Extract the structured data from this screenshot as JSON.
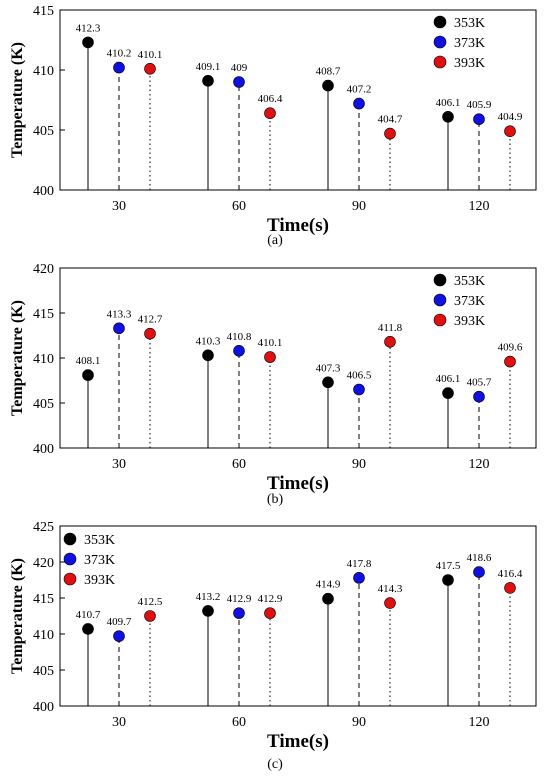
{
  "chart_data": [
    {
      "type": "scatter",
      "subtitle": "(a)",
      "xlabel": "Time(s)",
      "ylabel": "Temperature (K)",
      "categories": [
        "30",
        "60",
        "90",
        "120"
      ],
      "ylim": [
        400,
        415
      ],
      "yticks": [
        400,
        405,
        410,
        415
      ],
      "legend_position": "top-right",
      "series": [
        {
          "name": "353K",
          "color": "#000000",
          "line_style": "solid",
          "values": [
            412.3,
            409.1,
            408.7,
            406.1
          ],
          "labels": [
            "412.3",
            "409.1",
            "408.7",
            "406.1"
          ]
        },
        {
          "name": "373K",
          "color": "#1010e0",
          "line_style": "dashed",
          "values": [
            410.2,
            409.0,
            407.2,
            405.9
          ],
          "labels": [
            "410.2",
            "409",
            "407.2",
            "405.9"
          ]
        },
        {
          "name": "393K",
          "color": "#e01010",
          "line_style": "dotted",
          "values": [
            410.1,
            406.4,
            404.7,
            404.9
          ],
          "labels": [
            "410.1",
            "406.4",
            "404.7",
            "404.9"
          ]
        }
      ]
    },
    {
      "type": "scatter",
      "subtitle": "(b)",
      "xlabel": "Time(s)",
      "ylabel": "Temperature (K)",
      "categories": [
        "30",
        "60",
        "90",
        "120"
      ],
      "ylim": [
        400,
        420
      ],
      "yticks": [
        400,
        405,
        410,
        415,
        420
      ],
      "legend_position": "top-right",
      "series": [
        {
          "name": "353K",
          "color": "#000000",
          "line_style": "solid",
          "values": [
            408.1,
            410.3,
            407.3,
            406.1
          ],
          "labels": [
            "408.1",
            "410.3",
            "407.3",
            "406.1"
          ]
        },
        {
          "name": "373K",
          "color": "#1010e0",
          "line_style": "dashed",
          "values": [
            413.3,
            410.8,
            406.5,
            405.7
          ],
          "labels": [
            "413.3",
            "410.8",
            "406.5",
            "405.7"
          ]
        },
        {
          "name": "393K",
          "color": "#e01010",
          "line_style": "dotted",
          "values": [
            412.7,
            410.1,
            411.8,
            409.6
          ],
          "labels": [
            "412.7",
            "410.1",
            "411.8",
            "409.6"
          ]
        }
      ]
    },
    {
      "type": "scatter",
      "subtitle": "(c)",
      "xlabel": "Time(s)",
      "ylabel": "Temperature (K)",
      "categories": [
        "30",
        "60",
        "90",
        "120"
      ],
      "ylim": [
        400,
        425
      ],
      "yticks": [
        400,
        405,
        410,
        415,
        420,
        425
      ],
      "legend_position": "top-left",
      "series": [
        {
          "name": "353K",
          "color": "#000000",
          "line_style": "solid",
          "values": [
            410.7,
            413.2,
            414.9,
            417.5
          ],
          "labels": [
            "410.7",
            "413.2",
            "414.9",
            "417.5"
          ]
        },
        {
          "name": "373K",
          "color": "#1010e0",
          "line_style": "dashed",
          "values": [
            409.7,
            412.9,
            417.8,
            418.6
          ],
          "labels": [
            "409.7",
            "412.9",
            "417.8",
            "418.6"
          ]
        },
        {
          "name": "393K",
          "color": "#e01010",
          "line_style": "dotted",
          "values": [
            412.5,
            412.9,
            414.3,
            416.4
          ],
          "labels": [
            "412.5",
            "412.9",
            "414.3",
            "416.4"
          ]
        }
      ]
    }
  ]
}
